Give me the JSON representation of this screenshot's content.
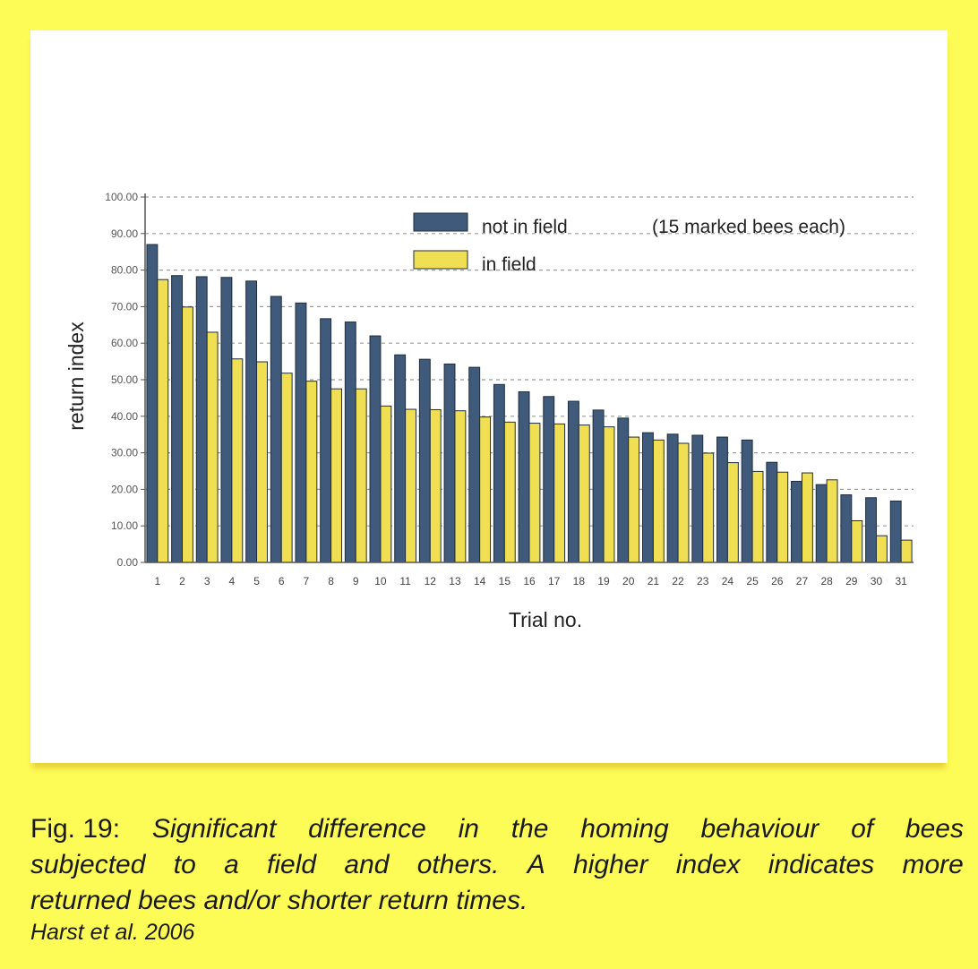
{
  "chart_data": {
    "type": "bar",
    "ylabel": "return index",
    "xlabel": "Trial no.",
    "ylim": [
      0,
      100
    ],
    "yticks": [
      "0.00",
      "10.00",
      "20.00",
      "30.00",
      "40.00",
      "50.00",
      "60.00",
      "70.00",
      "80.00",
      "90.00",
      "100.00"
    ],
    "grid": "dashed horizontal",
    "legend_note": "(15 marked bees each)",
    "legend_position": "top",
    "categories": [
      "1",
      "2",
      "3",
      "4",
      "5",
      "6",
      "7",
      "8",
      "9",
      "10",
      "11",
      "12",
      "13",
      "14",
      "15",
      "16",
      "17",
      "18",
      "19",
      "20",
      "21",
      "22",
      "23",
      "24",
      "25",
      "26",
      "27",
      "28",
      "29",
      "30",
      "31"
    ],
    "series": [
      {
        "name": "not in field",
        "color": "#3f5a7a",
        "values": [
          87.0,
          78.5,
          78.2,
          78.0,
          77.0,
          72.8,
          71.0,
          66.7,
          65.8,
          62.0,
          56.8,
          55.6,
          54.3,
          53.4,
          48.7,
          46.7,
          45.4,
          44.1,
          41.7,
          39.5,
          35.5,
          35.1,
          34.8,
          34.3,
          33.5,
          27.4,
          22.2,
          21.3,
          18.5,
          17.7,
          16.8
        ]
      },
      {
        "name": "in field",
        "color": "#f0df52",
        "values": [
          77.4,
          69.9,
          63.0,
          55.7,
          54.9,
          51.8,
          49.6,
          47.5,
          47.5,
          42.8,
          41.9,
          41.8,
          41.5,
          39.8,
          38.4,
          38.1,
          37.9,
          37.6,
          37.1,
          34.3,
          33.5,
          32.6,
          29.9,
          27.3,
          24.9,
          24.7,
          24.5,
          22.6,
          11.4,
          7.3,
          6.1
        ]
      }
    ]
  },
  "caption": {
    "prefix": "Fig. 19:",
    "line1_words": [
      "Significant",
      "difference",
      "in",
      "the",
      "homing",
      "behaviour",
      "of",
      "bees"
    ],
    "line2_words": [
      "subjected",
      "to",
      "a",
      "field",
      "and",
      "others.",
      "A",
      "higher",
      "index",
      "indicates",
      "more"
    ],
    "line3": "returned bees and/or shorter return times.",
    "citation": "Harst et al. 2006"
  }
}
